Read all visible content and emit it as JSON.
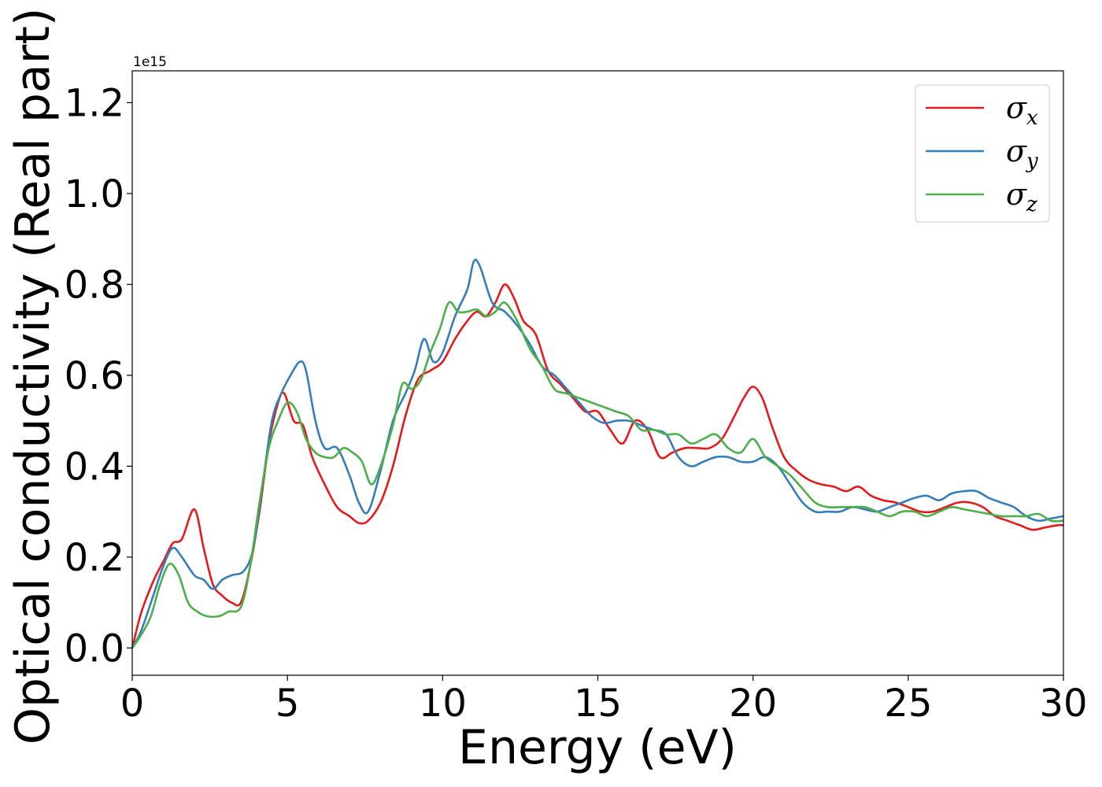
{
  "chart_data": {
    "type": "line",
    "xlabel": "Energy (eV)",
    "ylabel": "Optical conductivity (Real part)",
    "y_offset_label": "1e15",
    "xlim": [
      0,
      30
    ],
    "ylim": [
      -0.06,
      1.27
    ],
    "x_ticks": [
      0,
      5,
      10,
      15,
      20,
      25,
      30
    ],
    "x_tick_labels": [
      "0",
      "5",
      "10",
      "15",
      "20",
      "25",
      "30"
    ],
    "y_ticks": [
      0.0,
      0.2,
      0.4,
      0.6,
      0.8,
      1.0,
      1.2
    ],
    "y_tick_labels": [
      "0.0",
      "0.2",
      "0.4",
      "0.6",
      "0.8",
      "1.0",
      "1.2"
    ],
    "grid": false,
    "legend_position": "top-right",
    "series": [
      {
        "name": "σx",
        "legend_base": "σ",
        "legend_sub": "x",
        "color": "#e41a1c",
        "x": [
          0,
          0.3,
          0.7,
          1.0,
          1.3,
          1.6,
          2.0,
          2.3,
          2.6,
          2.9,
          3.2,
          3.5,
          3.8,
          4.1,
          4.4,
          4.7,
          4.9,
          5.2,
          5.5,
          5.8,
          6.2,
          6.6,
          7.0,
          7.3,
          7.6,
          8.0,
          8.4,
          8.8,
          9.2,
          9.6,
          10.0,
          10.4,
          10.8,
          11.1,
          11.4,
          11.7,
          12.0,
          12.3,
          12.6,
          13.0,
          13.4,
          13.8,
          14.2,
          14.6,
          15.0,
          15.4,
          15.8,
          16.2,
          16.6,
          17.0,
          17.4,
          17.8,
          18.2,
          18.6,
          19.0,
          19.4,
          19.7,
          20.0,
          20.3,
          20.6,
          21.0,
          21.4,
          21.8,
          22.2,
          22.6,
          23.0,
          23.4,
          23.8,
          24.2,
          24.6,
          25.0,
          25.4,
          25.8,
          26.2,
          26.6,
          27.0,
          27.4,
          27.8,
          28.2,
          28.6,
          29.0,
          29.4,
          29.8,
          30.0
        ],
        "values": [
          0.0,
          0.08,
          0.15,
          0.19,
          0.23,
          0.24,
          0.305,
          0.22,
          0.14,
          0.115,
          0.1,
          0.1,
          0.18,
          0.3,
          0.45,
          0.54,
          0.56,
          0.5,
          0.49,
          0.42,
          0.36,
          0.31,
          0.29,
          0.275,
          0.28,
          0.32,
          0.4,
          0.51,
          0.59,
          0.61,
          0.63,
          0.68,
          0.72,
          0.74,
          0.73,
          0.76,
          0.8,
          0.77,
          0.72,
          0.69,
          0.61,
          0.58,
          0.55,
          0.52,
          0.52,
          0.48,
          0.45,
          0.5,
          0.48,
          0.42,
          0.43,
          0.44,
          0.44,
          0.44,
          0.46,
          0.51,
          0.55,
          0.575,
          0.55,
          0.49,
          0.42,
          0.39,
          0.37,
          0.36,
          0.355,
          0.345,
          0.355,
          0.335,
          0.325,
          0.32,
          0.31,
          0.3,
          0.3,
          0.31,
          0.32,
          0.32,
          0.31,
          0.29,
          0.28,
          0.27,
          0.26,
          0.265,
          0.27,
          0.27
        ]
      },
      {
        "name": "σy",
        "legend_base": "σ",
        "legend_sub": "y",
        "color": "#377eb8",
        "x": [
          0,
          0.3,
          0.7,
          1.0,
          1.3,
          1.6,
          2.0,
          2.3,
          2.6,
          2.9,
          3.2,
          3.6,
          3.9,
          4.2,
          4.5,
          4.8,
          5.1,
          5.4,
          5.6,
          5.9,
          6.2,
          6.6,
          7.0,
          7.3,
          7.6,
          8.0,
          8.4,
          8.8,
          9.1,
          9.4,
          9.7,
          10.0,
          10.4,
          10.8,
          11.0,
          11.2,
          11.6,
          12.0,
          12.4,
          12.8,
          13.2,
          13.6,
          14.0,
          14.4,
          14.8,
          15.2,
          15.6,
          16.0,
          16.4,
          16.8,
          17.2,
          17.6,
          18.0,
          18.4,
          18.8,
          19.2,
          19.6,
          20.0,
          20.4,
          20.8,
          21.2,
          21.6,
          22.0,
          22.4,
          22.8,
          23.2,
          23.6,
          24.0,
          24.4,
          24.8,
          25.2,
          25.6,
          26.0,
          26.4,
          26.8,
          27.2,
          27.6,
          28.0,
          28.4,
          28.8,
          29.2,
          29.6,
          30.0
        ],
        "values": [
          0.0,
          0.04,
          0.12,
          0.18,
          0.22,
          0.2,
          0.16,
          0.15,
          0.13,
          0.15,
          0.16,
          0.17,
          0.22,
          0.36,
          0.5,
          0.56,
          0.6,
          0.63,
          0.61,
          0.5,
          0.44,
          0.44,
          0.38,
          0.32,
          0.3,
          0.39,
          0.5,
          0.56,
          0.61,
          0.68,
          0.63,
          0.65,
          0.73,
          0.79,
          0.85,
          0.84,
          0.76,
          0.74,
          0.71,
          0.67,
          0.62,
          0.6,
          0.57,
          0.54,
          0.51,
          0.495,
          0.5,
          0.5,
          0.49,
          0.48,
          0.47,
          0.42,
          0.4,
          0.41,
          0.42,
          0.42,
          0.41,
          0.41,
          0.42,
          0.4,
          0.36,
          0.32,
          0.3,
          0.3,
          0.3,
          0.31,
          0.305,
          0.3,
          0.31,
          0.32,
          0.33,
          0.335,
          0.325,
          0.34,
          0.345,
          0.345,
          0.33,
          0.32,
          0.31,
          0.29,
          0.28,
          0.285,
          0.29
        ]
      },
      {
        "name": "σz",
        "legend_base": "σ",
        "legend_sub": "z",
        "color": "#4daf4a",
        "x": [
          0,
          0.3,
          0.6,
          0.9,
          1.2,
          1.5,
          1.8,
          2.1,
          2.4,
          2.8,
          3.1,
          3.5,
          3.8,
          4.1,
          4.4,
          4.7,
          5.0,
          5.3,
          5.6,
          5.9,
          6.2,
          6.5,
          6.8,
          7.1,
          7.4,
          7.7,
          8.0,
          8.4,
          8.7,
          9.0,
          9.3,
          9.6,
          9.9,
          10.2,
          10.5,
          10.8,
          11.1,
          11.4,
          11.7,
          12.0,
          12.4,
          12.8,
          13.2,
          13.6,
          14.0,
          14.4,
          14.8,
          15.2,
          15.6,
          16.0,
          16.4,
          16.8,
          17.2,
          17.6,
          18.0,
          18.4,
          18.8,
          19.2,
          19.6,
          20.0,
          20.4,
          20.8,
          21.2,
          21.6,
          22.0,
          22.4,
          22.8,
          23.2,
          23.6,
          24.0,
          24.4,
          24.8,
          25.2,
          25.6,
          26.0,
          26.4,
          26.8,
          27.2,
          27.6,
          28.0,
          28.4,
          28.8,
          29.2,
          29.6,
          30.0
        ],
        "values": [
          0.0,
          0.03,
          0.07,
          0.14,
          0.185,
          0.16,
          0.1,
          0.08,
          0.07,
          0.07,
          0.08,
          0.09,
          0.18,
          0.32,
          0.44,
          0.5,
          0.54,
          0.52,
          0.46,
          0.43,
          0.42,
          0.42,
          0.44,
          0.43,
          0.41,
          0.36,
          0.4,
          0.49,
          0.58,
          0.57,
          0.59,
          0.65,
          0.7,
          0.76,
          0.74,
          0.74,
          0.745,
          0.73,
          0.74,
          0.76,
          0.72,
          0.66,
          0.62,
          0.57,
          0.56,
          0.55,
          0.54,
          0.53,
          0.52,
          0.51,
          0.48,
          0.48,
          0.47,
          0.47,
          0.45,
          0.46,
          0.47,
          0.44,
          0.43,
          0.46,
          0.42,
          0.4,
          0.38,
          0.35,
          0.32,
          0.31,
          0.31,
          0.31,
          0.31,
          0.3,
          0.29,
          0.3,
          0.3,
          0.29,
          0.3,
          0.31,
          0.305,
          0.3,
          0.295,
          0.29,
          0.29,
          0.29,
          0.295,
          0.28,
          0.28
        ]
      }
    ]
  }
}
